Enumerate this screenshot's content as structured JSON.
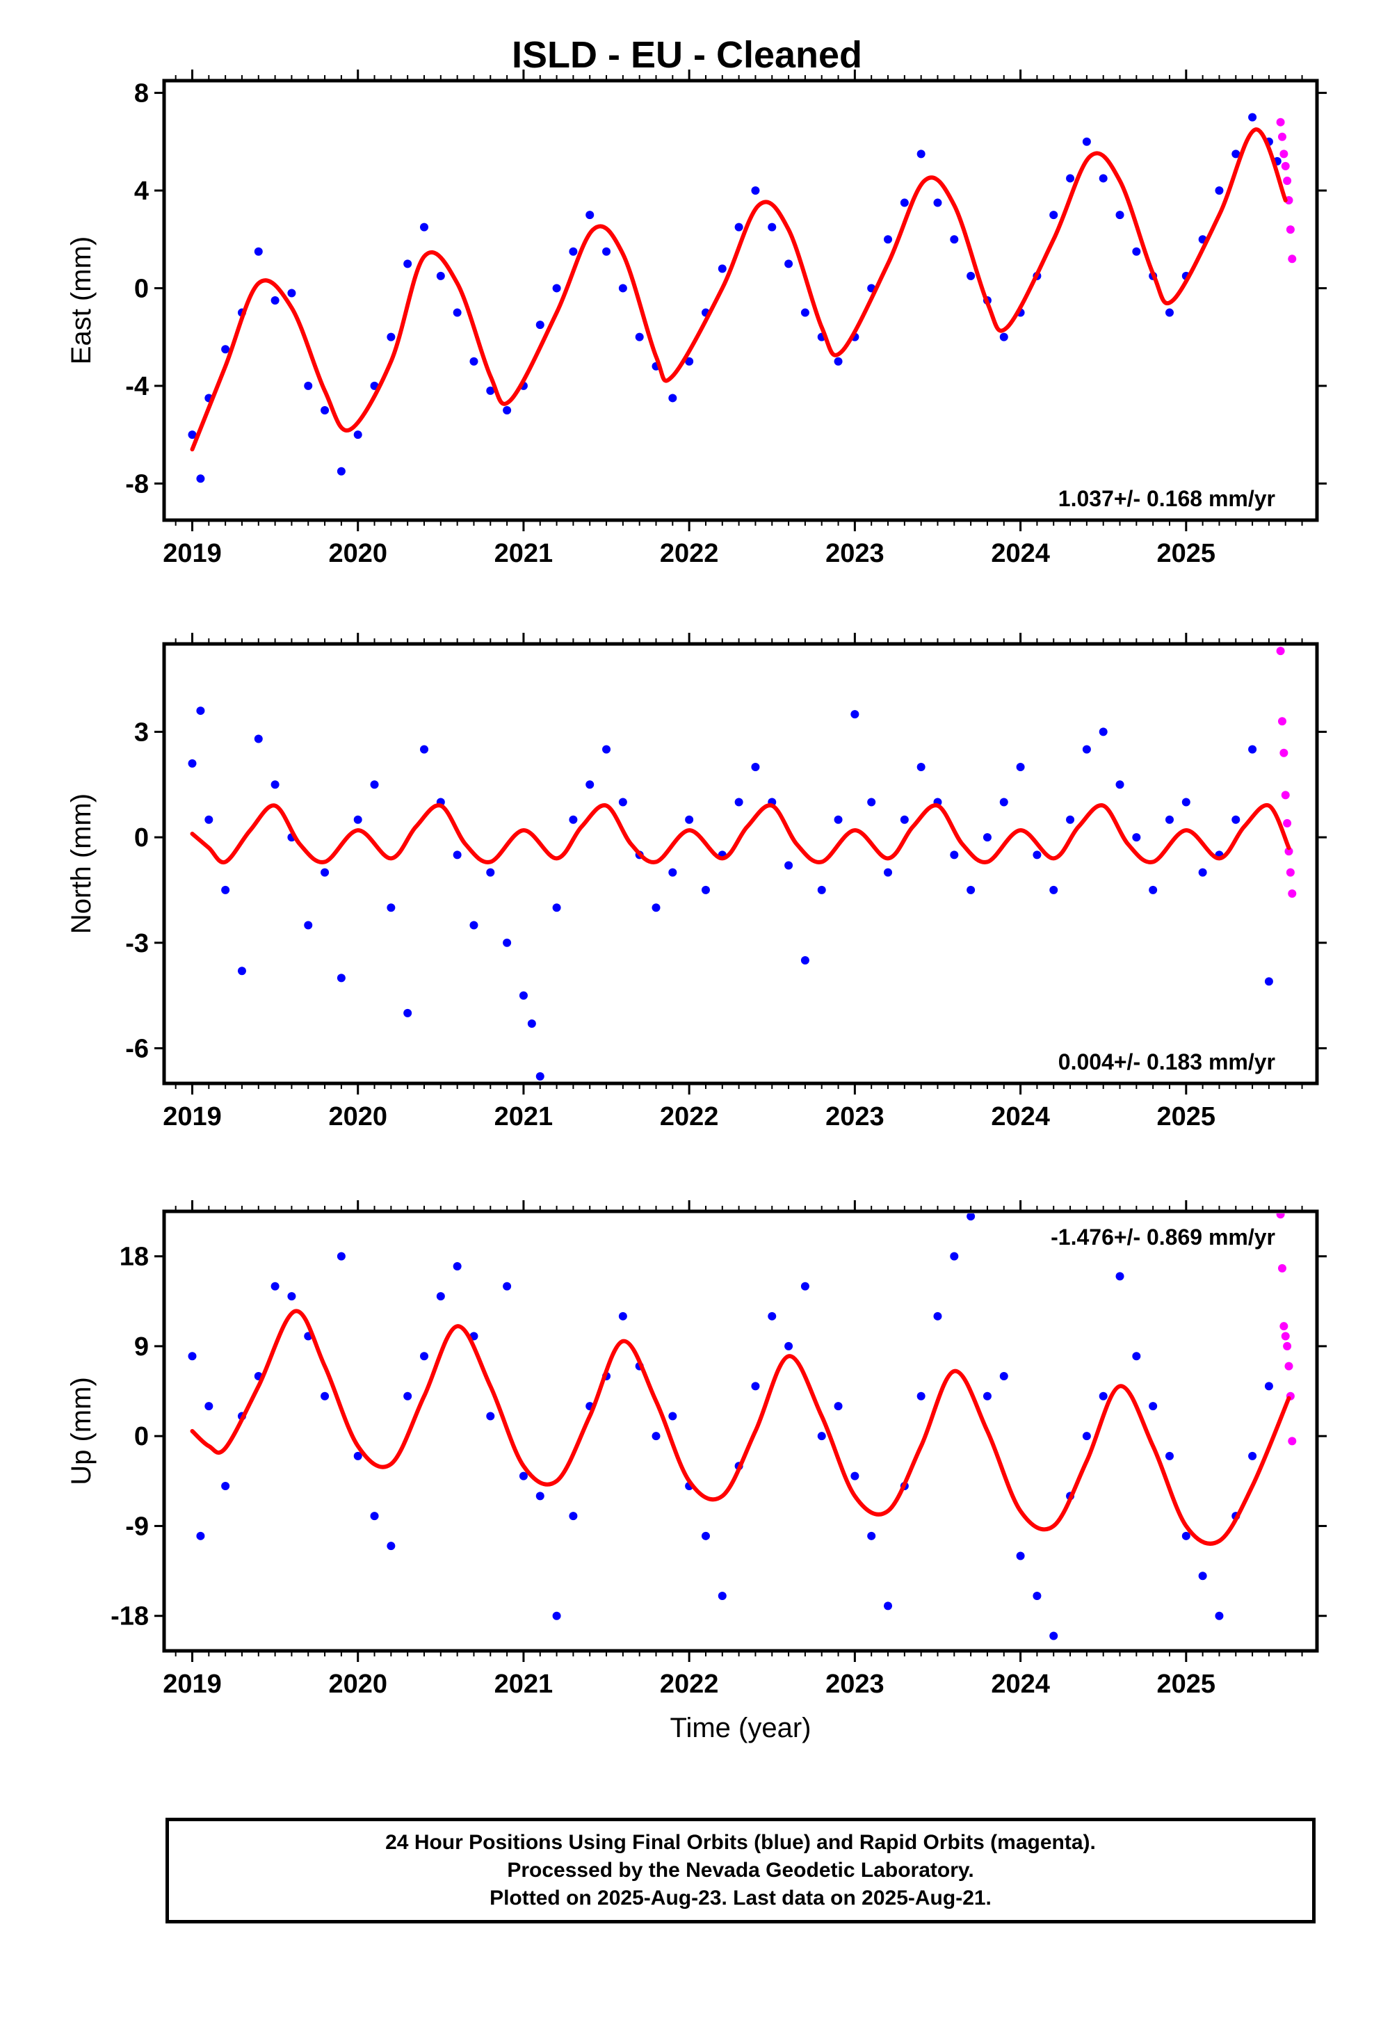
{
  "title": "ISLD  - EU - Cleaned",
  "footer": {
    "line1": "24 Hour Positions Using Final Orbits (blue) and Rapid Orbits (magenta).",
    "line2": "Processed by the Nevada Geodetic Laboratory.",
    "line3": "Plotted on 2025-Aug-23. Last data on 2025-Aug-21."
  },
  "colors": {
    "final_orbits": "#0000ff",
    "rapid_orbits": "#ff00ff",
    "model_fit": "#ff0000",
    "axes": "#000000"
  },
  "x_axis": {
    "label": "Time (year)",
    "ticks": [
      "2019",
      "2020",
      "2021",
      "2022",
      "2023",
      "2024",
      "2025"
    ],
    "range": [
      2018.83,
      2025.79
    ]
  },
  "chart_data": [
    {
      "type": "scatter",
      "panel": "east",
      "ylabel": "East (mm)",
      "ylim": [
        -9.5,
        8.5
      ],
      "yticks": [
        "8",
        "4",
        "0",
        "-4",
        "-8"
      ],
      "annotation": "1.037+/- 0.168 mm/yr",
      "trend_mm_per_yr": 1.037,
      "model": {
        "x": [
          2019.0,
          2019.2,
          2019.4,
          2019.6,
          2019.8,
          2019.95,
          2020.2,
          2020.4,
          2020.6,
          2020.8,
          2020.92,
          2021.2,
          2021.42,
          2021.6,
          2021.8,
          2021.9,
          2022.2,
          2022.42,
          2022.6,
          2022.8,
          2022.92,
          2023.2,
          2023.42,
          2023.6,
          2023.8,
          2023.92,
          2024.2,
          2024.42,
          2024.6,
          2024.8,
          2024.92,
          2025.2,
          2025.42,
          2025.6
        ],
        "y": [
          -6.6,
          -3.2,
          0.2,
          -0.8,
          -4.2,
          -5.8,
          -3.0,
          1.3,
          0.2,
          -3.6,
          -4.6,
          -1.0,
          2.4,
          1.4,
          -2.8,
          -3.6,
          0.0,
          3.4,
          2.4,
          -1.6,
          -2.6,
          1.0,
          4.4,
          3.4,
          -0.6,
          -1.6,
          2.0,
          5.4,
          4.4,
          0.6,
          -0.5,
          3.0,
          6.5,
          3.6
        ]
      },
      "final_orbits": {
        "x": [
          2019.0,
          2019.05,
          2019.1,
          2019.2,
          2019.3,
          2019.4,
          2019.5,
          2019.6,
          2019.7,
          2019.8,
          2019.9,
          2020.0,
          2020.1,
          2020.2,
          2020.3,
          2020.4,
          2020.5,
          2020.6,
          2020.7,
          2020.8,
          2020.9,
          2021.0,
          2021.1,
          2021.2,
          2021.3,
          2021.4,
          2021.5,
          2021.6,
          2021.7,
          2021.8,
          2021.9,
          2022.0,
          2022.1,
          2022.2,
          2022.3,
          2022.4,
          2022.5,
          2022.6,
          2022.7,
          2022.8,
          2022.9,
          2023.0,
          2023.1,
          2023.2,
          2023.3,
          2023.4,
          2023.5,
          2023.6,
          2023.7,
          2023.8,
          2023.9,
          2024.0,
          2024.1,
          2024.2,
          2024.3,
          2024.4,
          2024.5,
          2024.6,
          2024.7,
          2024.8,
          2024.9,
          2025.0,
          2025.1,
          2025.2,
          2025.3,
          2025.4,
          2025.5,
          2025.55
        ],
        "y": [
          -6.0,
          -7.8,
          -4.5,
          -2.5,
          -1.0,
          1.5,
          -0.5,
          -0.2,
          -4.0,
          -5.0,
          -7.5,
          -6.0,
          -4.0,
          -2.0,
          1.0,
          2.5,
          0.5,
          -1.0,
          -3.0,
          -4.2,
          -5.0,
          -4.0,
          -1.5,
          0.0,
          1.5,
          3.0,
          1.5,
          0.0,
          -2.0,
          -3.2,
          -4.5,
          -3.0,
          -1.0,
          0.8,
          2.5,
          4.0,
          2.5,
          1.0,
          -1.0,
          -2.0,
          -3.0,
          -2.0,
          0.0,
          2.0,
          3.5,
          5.5,
          3.5,
          2.0,
          0.5,
          -0.5,
          -2.0,
          -1.0,
          0.5,
          3.0,
          4.5,
          6.0,
          4.5,
          3.0,
          1.5,
          0.5,
          -1.0,
          0.5,
          2.0,
          4.0,
          5.5,
          7.0,
          6.0,
          5.2
        ]
      },
      "rapid_orbits": {
        "x": [
          2025.57,
          2025.58,
          2025.59,
          2025.6,
          2025.61,
          2025.62,
          2025.63,
          2025.64
        ],
        "y": [
          6.8,
          6.2,
          5.5,
          5.0,
          4.4,
          3.6,
          2.4,
          1.2
        ]
      }
    },
    {
      "type": "scatter",
      "panel": "north",
      "ylabel": "North (mm)",
      "ylim": [
        -7.0,
        5.5
      ],
      "yticks": [
        "3",
        "0",
        "-3",
        "-6"
      ],
      "annotation": "0.004+/- 0.183 mm/yr",
      "trend_mm_per_yr": 0.004,
      "model": {
        "x": [
          2019.0,
          2019.1,
          2019.2,
          2019.35,
          2019.5,
          2019.65,
          2019.8,
          2020.0,
          2020.2,
          2020.35,
          2020.5,
          2020.65,
          2020.8,
          2021.0,
          2021.2,
          2021.35,
          2021.5,
          2021.65,
          2021.8,
          2022.0,
          2022.2,
          2022.35,
          2022.5,
          2022.65,
          2022.8,
          2023.0,
          2023.2,
          2023.35,
          2023.5,
          2023.65,
          2023.8,
          2024.0,
          2024.2,
          2024.35,
          2024.5,
          2024.65,
          2024.8,
          2025.0,
          2025.2,
          2025.35,
          2025.5,
          2025.62
        ],
        "y": [
          0.1,
          -0.3,
          -0.7,
          0.2,
          0.9,
          -0.2,
          -0.7,
          0.2,
          -0.6,
          0.3,
          0.9,
          -0.2,
          -0.7,
          0.2,
          -0.6,
          0.3,
          0.9,
          -0.2,
          -0.7,
          0.2,
          -0.6,
          0.3,
          0.9,
          -0.2,
          -0.7,
          0.2,
          -0.6,
          0.3,
          0.9,
          -0.2,
          -0.7,
          0.2,
          -0.6,
          0.3,
          0.9,
          -0.2,
          -0.7,
          0.2,
          -0.6,
          0.3,
          0.9,
          -0.3
        ]
      },
      "final_orbits": {
        "x": [
          2019.0,
          2019.05,
          2019.1,
          2019.2,
          2019.3,
          2019.4,
          2019.5,
          2019.6,
          2019.7,
          2019.8,
          2019.9,
          2020.0,
          2020.1,
          2020.2,
          2020.3,
          2020.4,
          2020.5,
          2020.6,
          2020.7,
          2020.8,
          2020.9,
          2021.0,
          2021.05,
          2021.1,
          2021.2,
          2021.3,
          2021.4,
          2021.5,
          2021.6,
          2021.7,
          2021.8,
          2021.9,
          2022.0,
          2022.1,
          2022.2,
          2022.3,
          2022.4,
          2022.5,
          2022.6,
          2022.7,
          2022.8,
          2022.9,
          2023.0,
          2023.1,
          2023.2,
          2023.3,
          2023.4,
          2023.5,
          2023.6,
          2023.7,
          2023.8,
          2023.9,
          2024.0,
          2024.1,
          2024.2,
          2024.3,
          2024.4,
          2024.5,
          2024.6,
          2024.7,
          2024.8,
          2024.9,
          2025.0,
          2025.1,
          2025.2,
          2025.3,
          2025.4,
          2025.5
        ],
        "y": [
          2.1,
          3.6,
          0.5,
          -1.5,
          -3.8,
          2.8,
          1.5,
          0.0,
          -2.5,
          -1.0,
          -4.0,
          0.5,
          1.5,
          -2.0,
          -5.0,
          2.5,
          1.0,
          -0.5,
          -2.5,
          -1.0,
          -3.0,
          -4.5,
          -5.3,
          -6.8,
          -2.0,
          0.5,
          1.5,
          2.5,
          1.0,
          -0.5,
          -2.0,
          -1.0,
          0.5,
          -1.5,
          -0.5,
          1.0,
          2.0,
          1.0,
          -0.8,
          -3.5,
          -1.5,
          0.5,
          3.5,
          1.0,
          -1.0,
          0.5,
          2.0,
          1.0,
          -0.5,
          -1.5,
          0.0,
          1.0,
          2.0,
          -0.5,
          -1.5,
          0.5,
          2.5,
          3.0,
          1.5,
          0.0,
          -1.5,
          0.5,
          1.0,
          -1.0,
          -0.5,
          0.5,
          2.5,
          -4.1
        ]
      },
      "rapid_orbits": {
        "x": [
          2025.57,
          2025.58,
          2025.59,
          2025.6,
          2025.61,
          2025.62,
          2025.63,
          2025.64
        ],
        "y": [
          5.3,
          3.3,
          2.4,
          1.2,
          0.4,
          -0.4,
          -1.0,
          -1.6
        ]
      }
    },
    {
      "type": "scatter",
      "panel": "up",
      "ylabel": "Up (mm)",
      "ylim": [
        -21.5,
        22.5
      ],
      "yticks": [
        "18",
        "9",
        "0",
        "-9",
        "-18"
      ],
      "annotation": "-1.476+/- 0.869 mm/yr",
      "trend_mm_per_yr": -1.476,
      "model": {
        "x": [
          2019.0,
          2019.1,
          2019.2,
          2019.4,
          2019.62,
          2019.8,
          2020.0,
          2020.2,
          2020.4,
          2020.6,
          2020.8,
          2021.0,
          2021.2,
          2021.4,
          2021.6,
          2021.8,
          2022.0,
          2022.2,
          2022.4,
          2022.6,
          2022.8,
          2023.0,
          2023.2,
          2023.4,
          2023.6,
          2023.8,
          2024.0,
          2024.2,
          2024.4,
          2024.6,
          2024.8,
          2025.0,
          2025.2,
          2025.4,
          2025.62
        ],
        "y": [
          0.5,
          -1.0,
          -1.2,
          5.0,
          12.5,
          7.0,
          -1.0,
          -2.8,
          4.0,
          11.0,
          5.0,
          -3.0,
          -4.5,
          2.0,
          9.5,
          3.5,
          -4.5,
          -6.0,
          0.5,
          8.0,
          2.0,
          -6.0,
          -7.5,
          -1.0,
          6.5,
          0.5,
          -7.5,
          -9.0,
          -2.5,
          5.0,
          -1.0,
          -9.0,
          -10.5,
          -5.0,
          3.8
        ]
      },
      "final_orbits": {
        "x": [
          2019.0,
          2019.05,
          2019.1,
          2019.2,
          2019.3,
          2019.4,
          2019.5,
          2019.6,
          2019.7,
          2019.8,
          2019.9,
          2020.0,
          2020.1,
          2020.2,
          2020.3,
          2020.4,
          2020.5,
          2020.6,
          2020.7,
          2020.8,
          2020.9,
          2021.0,
          2021.1,
          2021.2,
          2021.3,
          2021.4,
          2021.5,
          2021.6,
          2021.7,
          2021.8,
          2021.9,
          2022.0,
          2022.1,
          2022.2,
          2022.3,
          2022.4,
          2022.5,
          2022.6,
          2022.7,
          2022.8,
          2022.9,
          2023.0,
          2023.1,
          2023.2,
          2023.3,
          2023.4,
          2023.5,
          2023.6,
          2023.7,
          2023.8,
          2023.9,
          2024.0,
          2024.1,
          2024.2,
          2024.3,
          2024.4,
          2024.5,
          2024.6,
          2024.7,
          2024.8,
          2024.9,
          2025.0,
          2025.1,
          2025.2,
          2025.3,
          2025.4,
          2025.5
        ],
        "y": [
          8.0,
          -10.0,
          3.0,
          -5.0,
          2.0,
          6.0,
          15.0,
          14.0,
          10.0,
          4.0,
          18.0,
          -2.0,
          -8.0,
          -11.0,
          4.0,
          8.0,
          14.0,
          17.0,
          10.0,
          2.0,
          15.0,
          -4.0,
          -6.0,
          -18.0,
          -8.0,
          3.0,
          6.0,
          12.0,
          7.0,
          0.0,
          2.0,
          -5.0,
          -10.0,
          -16.0,
          -3.0,
          5.0,
          12.0,
          9.0,
          15.0,
          0.0,
          3.0,
          -4.0,
          -10.0,
          -17.0,
          -5.0,
          4.0,
          12.0,
          18.0,
          22.0,
          4.0,
          6.0,
          -12.0,
          -16.0,
          -20.0,
          -6.0,
          0.0,
          4.0,
          16.0,
          8.0,
          3.0,
          -2.0,
          -10.0,
          -14.0,
          -18.0,
          -8.0,
          -2.0,
          5.0
        ]
      },
      "rapid_orbits": {
        "x": [
          2025.57,
          2025.58,
          2025.59,
          2025.6,
          2025.61,
          2025.62,
          2025.63,
          2025.64
        ],
        "y": [
          22.2,
          16.8,
          11.0,
          10.0,
          9.0,
          7.0,
          4.0,
          -0.5
        ]
      }
    }
  ]
}
